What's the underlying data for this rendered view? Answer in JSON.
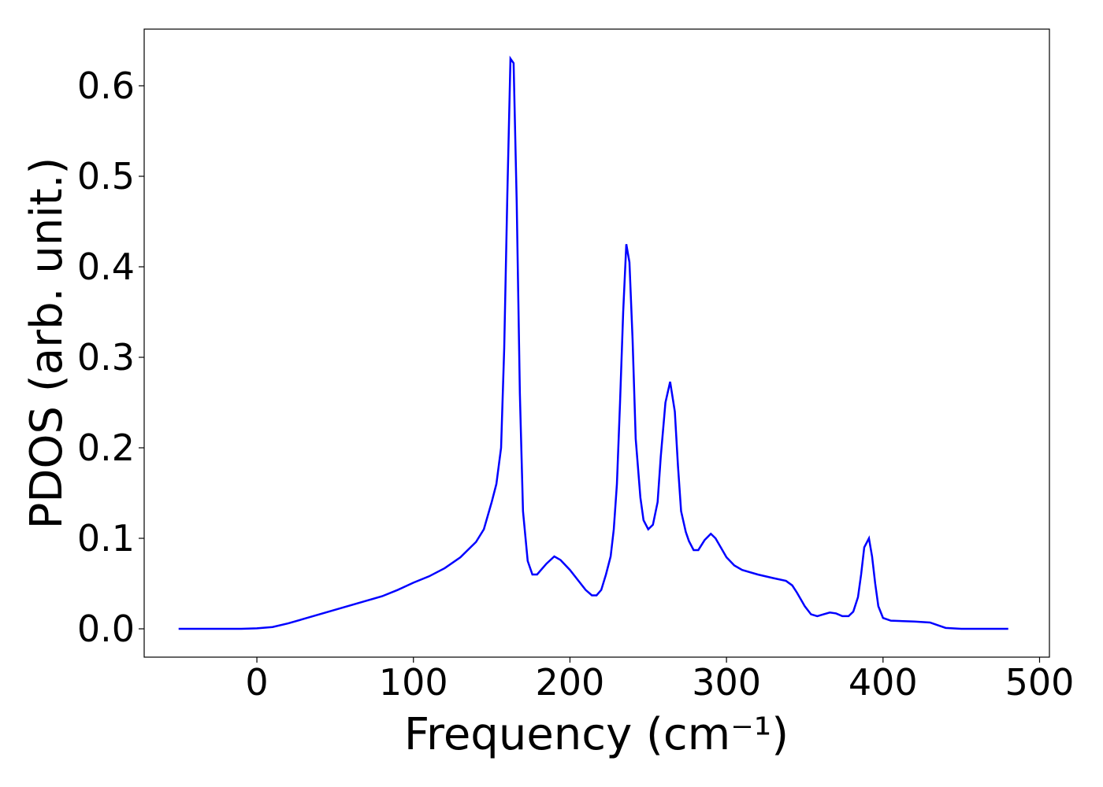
{
  "chart_data": {
    "type": "line",
    "xlabel": "Frequency (cm⁻¹)",
    "ylabel": "PDOS (arb. unit.)",
    "x": [
      -50,
      -10,
      0,
      10,
      20,
      30,
      40,
      50,
      60,
      70,
      80,
      90,
      100,
      110,
      120,
      130,
      140,
      145,
      150,
      153,
      156,
      158,
      160,
      162,
      164,
      166,
      168,
      170,
      173,
      176,
      179,
      185,
      190,
      194,
      200,
      205,
      210,
      214,
      217,
      220,
      223,
      226,
      228,
      230,
      232,
      234,
      236,
      238,
      240,
      242,
      245,
      247,
      250,
      253,
      256,
      258,
      261,
      264,
      267,
      269,
      271,
      274,
      276,
      279,
      282,
      286,
      290,
      293,
      297,
      300,
      305,
      310,
      320,
      330,
      338,
      342,
      345,
      350,
      354,
      358,
      362,
      366,
      370,
      374,
      378,
      381,
      384,
      386,
      388,
      391,
      393,
      395,
      397,
      400,
      405,
      420,
      430,
      435,
      440,
      450,
      480
    ],
    "series": [
      {
        "color": "#0000ff",
        "values": [
          0,
          0,
          0.0005,
          0.002,
          0.006,
          0.011,
          0.016,
          0.021,
          0.026,
          0.031,
          0.036,
          0.043,
          0.051,
          0.058,
          0.067,
          0.079,
          0.096,
          0.11,
          0.14,
          0.16,
          0.2,
          0.31,
          0.48,
          0.63,
          0.625,
          0.47,
          0.26,
          0.13,
          0.075,
          0.06,
          0.06,
          0.072,
          0.08,
          0.076,
          0.065,
          0.054,
          0.043,
          0.037,
          0.037,
          0.043,
          0.06,
          0.08,
          0.11,
          0.16,
          0.25,
          0.35,
          0.425,
          0.405,
          0.32,
          0.21,
          0.145,
          0.12,
          0.11,
          0.115,
          0.14,
          0.19,
          0.25,
          0.273,
          0.24,
          0.18,
          0.13,
          0.107,
          0.097,
          0.087,
          0.087,
          0.098,
          0.105,
          0.1,
          0.088,
          0.079,
          0.07,
          0.065,
          0.06,
          0.056,
          0.053,
          0.048,
          0.04,
          0.025,
          0.016,
          0.014,
          0.016,
          0.018,
          0.017,
          0.014,
          0.014,
          0.019,
          0.035,
          0.06,
          0.09,
          0.1,
          0.08,
          0.05,
          0.025,
          0.012,
          0.009,
          0.008,
          0.007,
          0.004,
          0.001,
          0,
          0
        ]
      }
    ],
    "xlim": [
      -72,
      506.3
    ],
    "xticks": [
      0,
      100,
      200,
      300,
      400,
      500
    ],
    "ylim": [
      -0.0313,
      0.6626
    ],
    "yticks": [
      {
        "value": 0,
        "label": "0.0"
      },
      0.1,
      0.2,
      0.3,
      0.4,
      0.5,
      0.6
    ]
  }
}
